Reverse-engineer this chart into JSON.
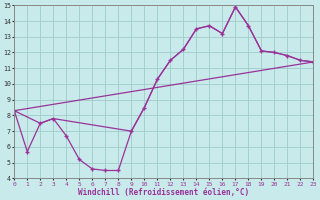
{
  "xlabel": "Windchill (Refroidissement éolien,°C)",
  "xlim": [
    0,
    23
  ],
  "ylim": [
    4,
    15
  ],
  "xticks": [
    0,
    1,
    2,
    3,
    4,
    5,
    6,
    7,
    8,
    9,
    10,
    11,
    12,
    13,
    14,
    15,
    16,
    17,
    18,
    19,
    20,
    21,
    22,
    23
  ],
  "yticks": [
    4,
    5,
    6,
    7,
    8,
    9,
    10,
    11,
    12,
    13,
    14,
    15
  ],
  "background_color": "#c8eaea",
  "line_color": "#993399",
  "grid_color": "#a0cccc",
  "line1_x": [
    0,
    1,
    2,
    3,
    4,
    5,
    6,
    7,
    8,
    9,
    10,
    11,
    12,
    13,
    14,
    15,
    16,
    17,
    18,
    19,
    20,
    21,
    22,
    23
  ],
  "line1_y": [
    8.3,
    5.7,
    7.5,
    7.8,
    6.7,
    5.2,
    4.6,
    4.5,
    4.5,
    7.0,
    8.5,
    10.3,
    11.5,
    12.2,
    13.5,
    13.7,
    13.2,
    14.9,
    13.7,
    12.1,
    12.0,
    11.8,
    11.5,
    11.4
  ],
  "line2_x": [
    0,
    2,
    3,
    9,
    10,
    11,
    12,
    13,
    14,
    15,
    16,
    17,
    18,
    19,
    20,
    21,
    22,
    23
  ],
  "line2_y": [
    8.3,
    7.5,
    7.8,
    7.0,
    8.5,
    10.3,
    11.5,
    12.2,
    13.5,
    13.7,
    13.2,
    14.9,
    13.7,
    12.1,
    12.0,
    11.8,
    11.5,
    11.4
  ],
  "line3_x": [
    0,
    23
  ],
  "line3_y": [
    8.3,
    11.4
  ]
}
